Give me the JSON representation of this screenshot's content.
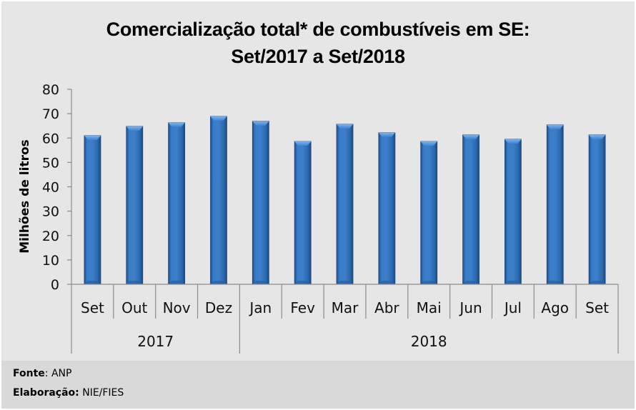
{
  "chart_data": {
    "type": "bar",
    "title": "Comercialização total* de combustíveis em SE:",
    "subtitle": "Set/2017 a Set/2018",
    "xlabel": "",
    "ylabel": "Milhões de litros",
    "ylim": [
      0,
      80
    ],
    "yticks": [
      0,
      10,
      20,
      30,
      40,
      50,
      60,
      70,
      80
    ],
    "grid": false,
    "legend": "none",
    "bar_color": "#2f6db5",
    "categories": [
      "Set",
      "Out",
      "Nov",
      "Dez",
      "Jan",
      "Fev",
      "Mar",
      "Abr",
      "Mai",
      "Jun",
      "Jul",
      "Ago",
      "Set"
    ],
    "groups": [
      {
        "label": "2017",
        "count": 4
      },
      {
        "label": "2018",
        "count": 9
      }
    ],
    "series": [
      {
        "name": "Comercialização total",
        "values": [
          61.0,
          64.8,
          66.3,
          68.9,
          66.9,
          58.6,
          65.7,
          62.2,
          58.6,
          61.3,
          59.5,
          65.4,
          61.3
        ]
      }
    ]
  },
  "footer": {
    "source_label": "Fonte",
    "source_value": ": ANP",
    "credit_label": "Elaboração:",
    "credit_value": " NIE/FIES"
  }
}
